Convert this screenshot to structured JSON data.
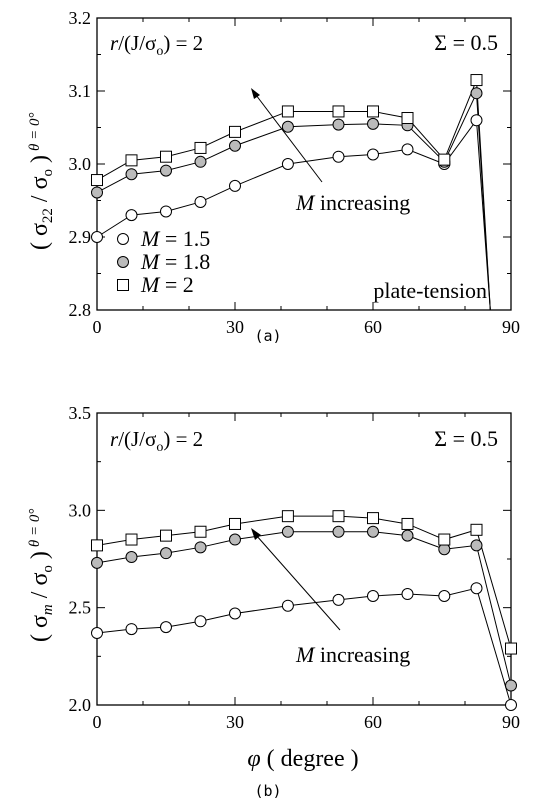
{
  "chart_data": [
    {
      "type": "line",
      "panel_label": "(a)",
      "ylabel": {
        "open": "( σ",
        "sub": "22",
        "mid": " / σ",
        "sub2": "o",
        "close": " )",
        "subscript": "θ = 0°"
      },
      "xlim": [
        0,
        90
      ],
      "ylim": [
        2.8,
        3.2
      ],
      "xticks": [
        "0",
        "30",
        "60",
        "90"
      ],
      "yticks": [
        "2.8",
        "2.9",
        "3.0",
        "3.1",
        "3.2"
      ],
      "annotations": {
        "ratio": {
          "pre": "r",
          "post": "/(J/σ",
          "sub": "o",
          "tail": ") = 2"
        },
        "sigma": "Σ = 0.5",
        "increasing": {
          "italic": "M",
          "rest": " increasing"
        },
        "condition": "plate-tension"
      },
      "legend": [
        {
          "label": "M = 1.5",
          "marker": "circle-open"
        },
        {
          "label": "M = 1.8",
          "marker": "circle-gray"
        },
        {
          "label": "M = 2",
          "marker": "square-open"
        }
      ],
      "x": [
        0,
        7.5,
        15,
        22.5,
        30,
        41.5,
        52.5,
        60,
        67.5,
        75.5,
        82.5,
        85.5
      ],
      "series": [
        {
          "name": "M = 1.5",
          "marker": "circle-open",
          "values": [
            2.9,
            2.93,
            2.935,
            2.948,
            2.97,
            3.0,
            3.01,
            3.013,
            3.02,
            3.0,
            3.06,
            2.8
          ]
        },
        {
          "name": "M = 1.8",
          "marker": "circle-gray",
          "values": [
            2.961,
            2.986,
            2.991,
            3.003,
            3.025,
            3.051,
            3.054,
            3.055,
            3.053,
            3.003,
            3.097,
            2.8
          ]
        },
        {
          "name": "M = 2",
          "marker": "square-open",
          "values": [
            2.978,
            3.005,
            3.01,
            3.022,
            3.044,
            3.072,
            3.072,
            3.072,
            3.063,
            3.006,
            3.115,
            2.8
          ]
        }
      ]
    },
    {
      "type": "line",
      "panel_label": "(b)",
      "ylabel": {
        "open": "( σ",
        "sub": "m",
        "mid": " / σ",
        "sub2": "o",
        "close": " )",
        "subscript": "θ = 0°"
      },
      "xlabel": {
        "symbol": "φ",
        "rest": "  ( degree )"
      },
      "xlim": [
        0,
        90
      ],
      "ylim": [
        2.0,
        3.5
      ],
      "xticks": [
        "0",
        "30",
        "60",
        "90"
      ],
      "yticks": [
        "2.0",
        "2.5",
        "3.0",
        "3.5"
      ],
      "annotations": {
        "ratio": {
          "pre": "r",
          "post": "/(J/σ",
          "sub": "o",
          "tail": ") = 2"
        },
        "sigma": "Σ = 0.5",
        "increasing": {
          "italic": "M",
          "rest": " increasing"
        }
      },
      "x": [
        0,
        7.5,
        15,
        22.5,
        30,
        41.5,
        52.5,
        60,
        67.5,
        75.5,
        82.5,
        90
      ],
      "series": [
        {
          "name": "M = 1.5",
          "marker": "circle-open",
          "values": [
            2.37,
            2.39,
            2.4,
            2.43,
            2.47,
            2.51,
            2.54,
            2.56,
            2.57,
            2.56,
            2.6,
            2.0
          ]
        },
        {
          "name": "M = 1.8",
          "marker": "circle-gray",
          "values": [
            2.73,
            2.76,
            2.78,
            2.81,
            2.85,
            2.89,
            2.89,
            2.89,
            2.87,
            2.8,
            2.82,
            2.1
          ]
        },
        {
          "name": "M = 2",
          "marker": "square-open",
          "values": [
            2.82,
            2.85,
            2.87,
            2.89,
            2.93,
            2.97,
            2.97,
            2.96,
            2.93,
            2.85,
            2.9,
            2.29
          ]
        }
      ]
    }
  ]
}
